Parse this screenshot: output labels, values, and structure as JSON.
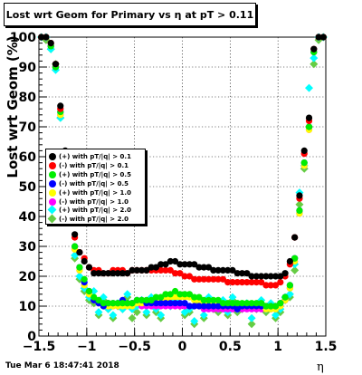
{
  "page": {
    "title": "Lost wrt Geom for Primary vs   η at pT > 0.11",
    "timestamp": "Tue Mar  6 18:47:41 2018"
  },
  "chart_data": {
    "type": "scatter",
    "title": "Lost wrt Geom for Primary vs   η at pT > 0.11",
    "xlabel": "η",
    "ylabel": "Lost wrt Geom (%)",
    "xlim": [
      -1.5,
      1.5
    ],
    "ylim": [
      0,
      100
    ],
    "grid": true,
    "legend_position": "left-middle",
    "x_ticks": [
      -1.5,
      -1,
      -0.5,
      0,
      0.5,
      1,
      1.5
    ],
    "x_tick_labels": [
      "−1.5",
      "−1",
      "−0.5",
      "0",
      "0.5",
      "1",
      "1.5"
    ],
    "y_ticks": [
      0,
      10,
      20,
      30,
      40,
      50,
      60,
      70,
      80,
      90,
      100
    ],
    "y_tick_labels": [
      "0",
      "10",
      "20",
      "30",
      "40",
      "50",
      "60",
      "70",
      "80",
      "90",
      "100"
    ],
    "x": [
      -1.475,
      -1.425,
      -1.375,
      -1.325,
      -1.275,
      -1.225,
      -1.175,
      -1.125,
      -1.075,
      -1.025,
      -0.975,
      -0.925,
      -0.875,
      -0.825,
      -0.775,
      -0.725,
      -0.675,
      -0.625,
      -0.575,
      -0.525,
      -0.475,
      -0.425,
      -0.375,
      -0.325,
      -0.275,
      -0.225,
      -0.175,
      -0.125,
      -0.075,
      -0.025,
      0.025,
      0.075,
      0.125,
      0.175,
      0.225,
      0.275,
      0.325,
      0.375,
      0.425,
      0.475,
      0.525,
      0.575,
      0.625,
      0.675,
      0.725,
      0.775,
      0.825,
      0.875,
      0.925,
      0.975,
      1.025,
      1.075,
      1.125,
      1.175,
      1.225,
      1.275,
      1.325,
      1.375,
      1.425,
      1.475
    ],
    "series": [
      {
        "name": "(+) with pT/|q| > 0.1",
        "color": "#000000",
        "marker": "circle",
        "values": [
          100,
          100,
          98,
          91,
          77,
          62,
          46,
          34,
          28,
          25,
          23,
          21,
          21,
          21,
          21,
          21,
          21,
          21,
          21,
          22,
          22,
          22,
          22,
          23,
          23,
          24,
          24,
          25,
          25,
          24,
          24,
          24,
          24,
          23,
          23,
          23,
          22,
          22,
          22,
          22,
          22,
          21,
          21,
          21,
          20,
          20,
          20,
          20,
          20,
          20,
          20,
          21,
          25,
          33,
          47,
          62,
          73,
          96,
          100,
          100
        ]
      },
      {
        "name": "(-) with pT/|q| > 0.1",
        "color": "#ff0000",
        "marker": "circle",
        "values": [
          100,
          100,
          98,
          91,
          76,
          61,
          45,
          33,
          28,
          26,
          23,
          22,
          22,
          21,
          21,
          22,
          22,
          22,
          21,
          22,
          22,
          22,
          22,
          22,
          22,
          22,
          22,
          22,
          21,
          21,
          20,
          20,
          19,
          19,
          19,
          19,
          19,
          19,
          19,
          18,
          18,
          18,
          18,
          18,
          18,
          18,
          18,
          17,
          17,
          17,
          18,
          20,
          24,
          33,
          46,
          61,
          72,
          96,
          100,
          100
        ]
      },
      {
        "name": "(+) with pT/|q| > 0.5",
        "color": "#00ee00",
        "marker": "circle",
        "values": [
          100,
          100,
          97,
          90,
          75,
          60,
          43,
          30,
          23,
          19,
          15,
          13,
          12,
          11,
          11,
          11,
          11,
          11,
          11,
          11,
          12,
          12,
          12,
          12,
          13,
          13,
          14,
          14,
          15,
          14,
          14,
          14,
          13,
          13,
          12,
          12,
          12,
          12,
          11,
          11,
          11,
          11,
          11,
          11,
          11,
          11,
          11,
          10,
          10,
          10,
          11,
          13,
          17,
          26,
          42,
          58,
          70,
          95,
          100,
          100
        ]
      },
      {
        "name": "(-) with pT/|q| > 0.5",
        "color": "#0000ff",
        "marker": "circle",
        "values": [
          100,
          100,
          97,
          90,
          75,
          60,
          43,
          30,
          23,
          18,
          15,
          12,
          11,
          10,
          11,
          11,
          11,
          12,
          11,
          11,
          12,
          12,
          11,
          11,
          11,
          11,
          11,
          11,
          11,
          11,
          11,
          10,
          10,
          10,
          10,
          10,
          10,
          10,
          10,
          10,
          10,
          9,
          10,
          10,
          10,
          10,
          10,
          10,
          10,
          10,
          11,
          13,
          17,
          26,
          42,
          58,
          70,
          95,
          100,
          100
        ]
      },
      {
        "name": "(+) with pT/|q| > 1.0",
        "color": "#ffff00",
        "marker": "circle",
        "values": [
          100,
          100,
          97,
          90,
          74,
          59,
          42,
          29,
          22,
          17,
          14,
          12,
          11,
          10,
          10,
          10,
          10,
          10,
          10,
          10,
          11,
          11,
          11,
          11,
          12,
          12,
          12,
          13,
          13,
          13,
          13,
          13,
          12,
          12,
          11,
          11,
          11,
          11,
          10,
          10,
          10,
          10,
          10,
          10,
          10,
          10,
          10,
          9,
          9,
          9,
          10,
          12,
          16,
          25,
          41,
          57,
          69,
          95,
          100,
          100
        ]
      },
      {
        "name": "(-) with pT/|q| > 1.0",
        "color": "#ff00ff",
        "marker": "circle",
        "values": [
          100,
          100,
          97,
          90,
          74,
          59,
          42,
          29,
          22,
          17,
          14,
          12,
          11,
          10,
          10,
          10,
          10,
          11,
          11,
          11,
          11,
          10,
          10,
          10,
          10,
          10,
          10,
          10,
          10,
          10,
          10,
          10,
          10,
          10,
          9,
          9,
          9,
          9,
          9,
          9,
          9,
          9,
          9,
          9,
          9,
          9,
          9,
          9,
          9,
          9,
          10,
          12,
          16,
          25,
          41,
          57,
          69,
          95,
          100,
          100
        ]
      },
      {
        "name": "(+) with pT/|q| > 2.0",
        "color": "#00ffff",
        "marker": "diamond",
        "values": [
          100,
          100,
          96,
          89,
          73,
          57,
          40,
          27,
          20,
          16,
          13,
          15,
          8,
          13,
          9,
          7,
          11,
          9,
          14,
          9,
          10,
          12,
          8,
          13,
          9,
          7,
          13,
          10,
          12,
          11,
          8,
          9,
          5,
          12,
          7,
          13,
          10,
          9,
          12,
          8,
          13,
          9,
          10,
          11,
          6,
          10,
          12,
          9,
          11,
          7,
          9,
          13,
          14,
          24,
          48,
          57,
          83,
          93,
          100,
          100
        ]
      },
      {
        "name": "(-) with pT/|q| > 2.0",
        "color": "#66cc44",
        "marker": "diamond",
        "values": [
          100,
          99,
          96,
          91,
          73,
          56,
          39,
          26,
          19,
          15,
          12,
          11,
          7,
          12,
          9,
          6,
          10,
          9,
          13,
          6,
          8,
          11,
          7,
          12,
          8,
          6,
          12,
          10,
          11,
          10,
          7,
          8,
          4,
          11,
          6,
          10,
          9,
          8,
          11,
          7,
          12,
          8,
          9,
          10,
          4,
          9,
          11,
          8,
          10,
          6,
          8,
          12,
          13,
          22,
          44,
          56,
          70,
          91,
          99,
          100
        ]
      }
    ]
  }
}
